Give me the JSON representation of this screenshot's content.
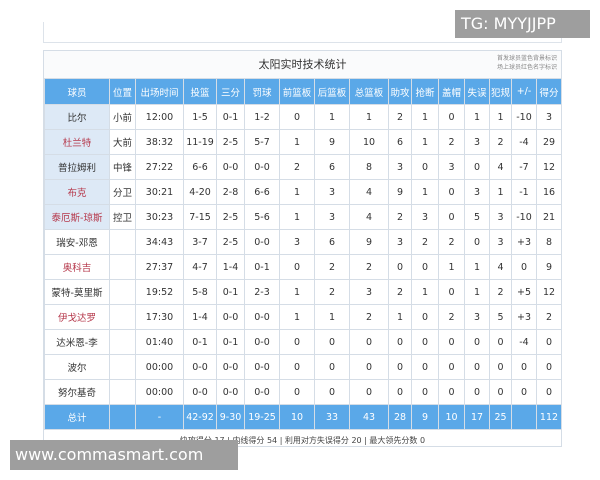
{
  "watermark_top": "TG: MYYJJPP",
  "watermark_bottom": "www.commasmart.com",
  "table_title": "太阳实时技术统计",
  "legend_line1": "首发球员蓝色背景标识",
  "legend_line2": "场上球员红色名字标识",
  "headers": [
    "球员",
    "位置",
    "出场时间",
    "投篮",
    "三分",
    "罚球",
    "前篮板",
    "后篮板",
    "总篮板",
    "助攻",
    "抢断",
    "盖帽",
    "失误",
    "犯规",
    "+/-",
    "得分"
  ],
  "rows": [
    {
      "name": "比尔",
      "starter": true,
      "on_court": false,
      "cells": [
        "小前",
        "12:00",
        "1-5",
        "0-1",
        "1-2",
        "0",
        "1",
        "1",
        "2",
        "1",
        "0",
        "1",
        "1",
        "-10",
        "3"
      ]
    },
    {
      "name": "杜兰特",
      "starter": true,
      "on_court": true,
      "cells": [
        "大前",
        "38:32",
        "11-19",
        "2-5",
        "5-7",
        "1",
        "9",
        "10",
        "6",
        "1",
        "2",
        "3",
        "2",
        "-4",
        "29"
      ]
    },
    {
      "name": "普拉姆利",
      "starter": true,
      "on_court": false,
      "cells": [
        "中锋",
        "27:22",
        "6-6",
        "0-0",
        "0-0",
        "2",
        "6",
        "8",
        "3",
        "0",
        "3",
        "0",
        "4",
        "-7",
        "12"
      ]
    },
    {
      "name": "布克",
      "starter": true,
      "on_court": true,
      "cells": [
        "分卫",
        "30:21",
        "4-20",
        "2-8",
        "6-6",
        "1",
        "3",
        "4",
        "9",
        "1",
        "0",
        "3",
        "1",
        "-1",
        "16"
      ]
    },
    {
      "name": "泰厄斯-琼斯",
      "starter": true,
      "on_court": true,
      "cells": [
        "控卫",
        "30:23",
        "7-15",
        "2-5",
        "5-6",
        "1",
        "3",
        "4",
        "2",
        "3",
        "0",
        "5",
        "3",
        "-10",
        "21"
      ]
    },
    {
      "name": "瑞安-邓恩",
      "starter": false,
      "on_court": false,
      "cells": [
        "",
        "34:43",
        "3-7",
        "2-5",
        "0-0",
        "3",
        "6",
        "9",
        "3",
        "2",
        "2",
        "0",
        "3",
        "+3",
        "8"
      ]
    },
    {
      "name": "奥科吉",
      "starter": false,
      "on_court": true,
      "cells": [
        "",
        "27:37",
        "4-7",
        "1-4",
        "0-1",
        "0",
        "2",
        "2",
        "0",
        "0",
        "1",
        "1",
        "4",
        "0",
        "9"
      ]
    },
    {
      "name": "蒙特-莫里斯",
      "starter": false,
      "on_court": false,
      "cells": [
        "",
        "19:52",
        "5-8",
        "0-1",
        "2-3",
        "1",
        "2",
        "3",
        "2",
        "1",
        "0",
        "1",
        "2",
        "+5",
        "12"
      ]
    },
    {
      "name": "伊戈达罗",
      "starter": false,
      "on_court": true,
      "cells": [
        "",
        "17:30",
        "1-4",
        "0-0",
        "0-0",
        "1",
        "1",
        "2",
        "1",
        "0",
        "2",
        "3",
        "5",
        "+3",
        "2"
      ]
    },
    {
      "name": "达米恩-李",
      "starter": false,
      "on_court": false,
      "cells": [
        "",
        "01:40",
        "0-1",
        "0-1",
        "0-0",
        "0",
        "0",
        "0",
        "0",
        "0",
        "0",
        "0",
        "0",
        "-4",
        "0"
      ]
    },
    {
      "name": "波尔",
      "starter": false,
      "on_court": false,
      "cells": [
        "",
        "00:00",
        "0-0",
        "0-0",
        "0-0",
        "0",
        "0",
        "0",
        "0",
        "0",
        "0",
        "0",
        "0",
        "0",
        "0"
      ]
    },
    {
      "name": "努尔基奇",
      "starter": false,
      "on_court": false,
      "cells": [
        "",
        "00:00",
        "0-0",
        "0-0",
        "0-0",
        "0",
        "0",
        "0",
        "0",
        "0",
        "0",
        "0",
        "0",
        "0",
        "0"
      ]
    }
  ],
  "total": {
    "name": "总计",
    "cells": [
      "",
      "-",
      "42-92",
      "9-30",
      "19-25",
      "10",
      "33",
      "43",
      "28",
      "9",
      "10",
      "17",
      "25",
      "",
      "112"
    ]
  },
  "footer": "快攻得分 17 | 内线得分 54 | 利用对方失误得分 20 | 最大领先分数 0",
  "colors": {
    "header_bg": "#5aa8e8",
    "starter_bg": "#dde9f6",
    "on_court_name": "#b5374a"
  }
}
